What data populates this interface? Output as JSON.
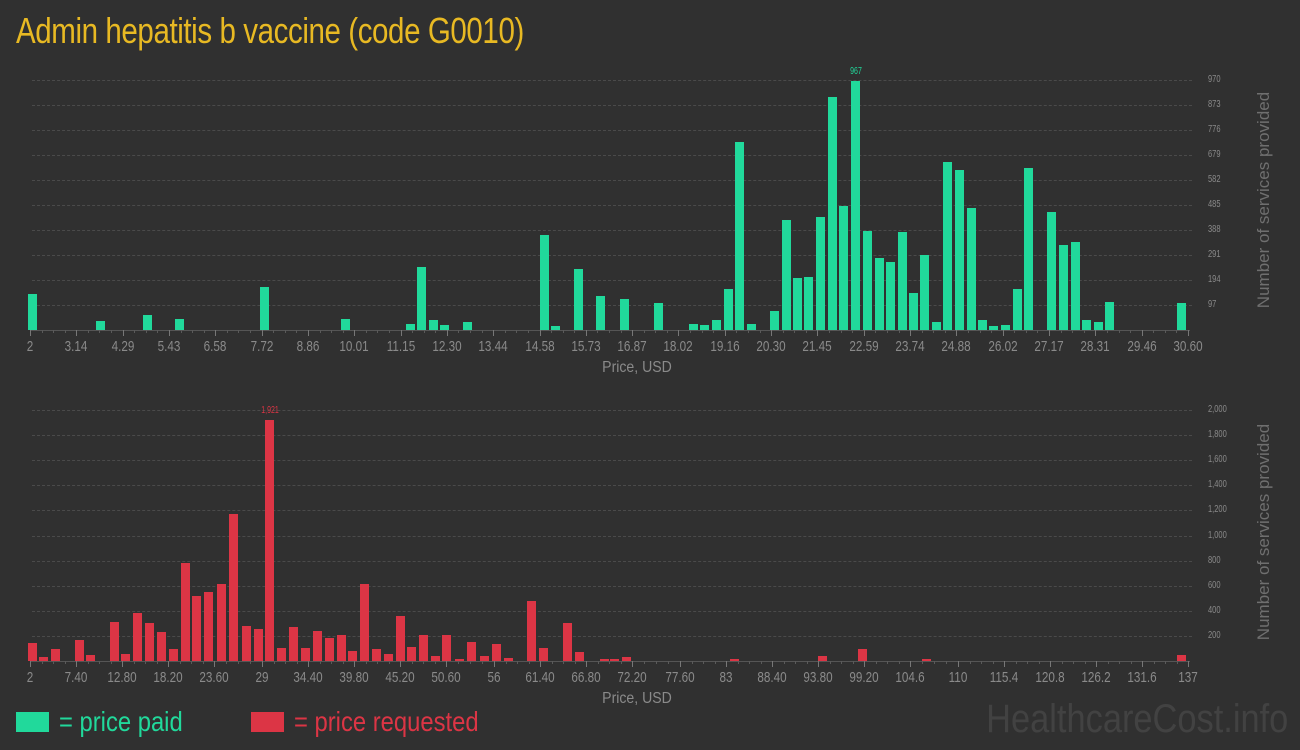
{
  "title": "Admin hepatitis b vaccine (code G0010)",
  "colors": {
    "title": "#e8b923",
    "paid": "#21d99b",
    "requested": "#dc3545",
    "background": "#303030"
  },
  "legend": {
    "paid_label": "= price paid",
    "requested_label": "= price requested"
  },
  "watermark": "HealthcareCost.info",
  "chart_data": [
    {
      "type": "bar",
      "name": "price-paid-histogram",
      "title": "",
      "xlabel": "Price, USD",
      "ylabel": "Number of services provided",
      "ylim": [
        0,
        970
      ],
      "yticks": [
        "97",
        "194",
        "291",
        "388",
        "485",
        "582",
        "679",
        "776",
        "873",
        "970"
      ],
      "xticks": [
        "2",
        "3.14",
        "4.29",
        "5.43",
        "6.58",
        "7.72",
        "8.86",
        "10.01",
        "11.15",
        "12.30",
        "13.44",
        "14.58",
        "15.73",
        "16.87",
        "18.02",
        "19.16",
        "20.30",
        "21.45",
        "22.59",
        "23.74",
        "24.88",
        "26.02",
        "27.17",
        "28.31",
        "29.46",
        "30.60"
      ],
      "peak_label": "967",
      "grid": true,
      "color": "#21d99b",
      "bars": [
        {
          "x": 2.05,
          "value": 140
        },
        {
          "x": 3.75,
          "value": 35
        },
        {
          "x": 4.9,
          "value": 60
        },
        {
          "x": 5.7,
          "value": 42
        },
        {
          "x": 7.8,
          "value": 165
        },
        {
          "x": 9.8,
          "value": 42
        },
        {
          "x": 11.4,
          "value": 25
        },
        {
          "x": 11.68,
          "value": 245
        },
        {
          "x": 11.98,
          "value": 38
        },
        {
          "x": 12.25,
          "value": 20
        },
        {
          "x": 12.8,
          "value": 30
        },
        {
          "x": 14.7,
          "value": 370
        },
        {
          "x": 14.98,
          "value": 15
        },
        {
          "x": 15.55,
          "value": 235
        },
        {
          "x": 16.1,
          "value": 130
        },
        {
          "x": 16.67,
          "value": 120
        },
        {
          "x": 17.53,
          "value": 105
        },
        {
          "x": 18.4,
          "value": 25
        },
        {
          "x": 18.67,
          "value": 20
        },
        {
          "x": 18.95,
          "value": 40
        },
        {
          "x": 19.25,
          "value": 160
        },
        {
          "x": 19.53,
          "value": 730
        },
        {
          "x": 19.81,
          "value": 22
        },
        {
          "x": 20.38,
          "value": 75
        },
        {
          "x": 20.67,
          "value": 425
        },
        {
          "x": 20.96,
          "value": 200
        },
        {
          "x": 21.23,
          "value": 205
        },
        {
          "x": 21.52,
          "value": 440
        },
        {
          "x": 21.82,
          "value": 905
        },
        {
          "x": 22.1,
          "value": 480
        },
        {
          "x": 22.39,
          "value": 967
        },
        {
          "x": 22.69,
          "value": 385
        },
        {
          "x": 22.97,
          "value": 278
        },
        {
          "x": 23.25,
          "value": 265
        },
        {
          "x": 23.54,
          "value": 380
        },
        {
          "x": 23.82,
          "value": 142
        },
        {
          "x": 24.1,
          "value": 292
        },
        {
          "x": 24.38,
          "value": 32
        },
        {
          "x": 24.67,
          "value": 652
        },
        {
          "x": 24.96,
          "value": 620
        },
        {
          "x": 25.24,
          "value": 472
        },
        {
          "x": 25.53,
          "value": 38
        },
        {
          "x": 25.8,
          "value": 15
        },
        {
          "x": 26.09,
          "value": 20
        },
        {
          "x": 26.38,
          "value": 160
        },
        {
          "x": 26.67,
          "value": 628
        },
        {
          "x": 27.23,
          "value": 458
        },
        {
          "x": 27.52,
          "value": 330
        },
        {
          "x": 27.81,
          "value": 343
        },
        {
          "x": 28.1,
          "value": 38
        },
        {
          "x": 28.38,
          "value": 32
        },
        {
          "x": 28.67,
          "value": 108
        },
        {
          "x": 30.45,
          "value": 105
        }
      ]
    },
    {
      "type": "bar",
      "name": "price-requested-histogram",
      "title": "",
      "xlabel": "Price, USD",
      "ylabel": "Number of services provided",
      "ylim": [
        0,
        2000
      ],
      "yticks": [
        "200",
        "400",
        "600",
        "800",
        "1,000",
        "1,200",
        "1,400",
        "1,600",
        "1,800",
        "2,000"
      ],
      "xticks": [
        "2",
        "7.40",
        "12.80",
        "18.20",
        "23.60",
        "29",
        "34.40",
        "39.80",
        "45.20",
        "50.60",
        "56",
        "61.40",
        "66.80",
        "72.20",
        "77.60",
        "83",
        "88.40",
        "93.80",
        "99.20",
        "104.6",
        "110",
        "115.4",
        "120.8",
        "126.2",
        "131.6",
        "137"
      ],
      "peak_label": "1,921",
      "grid": true,
      "color": "#dc3545",
      "bars": [
        {
          "x": 2.3,
          "value": 145
        },
        {
          "x": 3.6,
          "value": 35
        },
        {
          "x": 5.0,
          "value": 95
        },
        {
          "x": 7.8,
          "value": 165
        },
        {
          "x": 9.1,
          "value": 45
        },
        {
          "x": 11.9,
          "value": 310
        },
        {
          "x": 13.2,
          "value": 55
        },
        {
          "x": 14.6,
          "value": 380
        },
        {
          "x": 16.0,
          "value": 300
        },
        {
          "x": 17.4,
          "value": 230
        },
        {
          "x": 18.8,
          "value": 95
        },
        {
          "x": 20.2,
          "value": 780
        },
        {
          "x": 21.6,
          "value": 520
        },
        {
          "x": 23.0,
          "value": 550
        },
        {
          "x": 24.4,
          "value": 615
        },
        {
          "x": 25.8,
          "value": 1170
        },
        {
          "x": 27.2,
          "value": 280
        },
        {
          "x": 28.6,
          "value": 255
        },
        {
          "x": 29.9,
          "value": 1921
        },
        {
          "x": 31.3,
          "value": 105
        },
        {
          "x": 32.7,
          "value": 270
        },
        {
          "x": 34.1,
          "value": 105
        },
        {
          "x": 35.5,
          "value": 240
        },
        {
          "x": 36.9,
          "value": 180
        },
        {
          "x": 38.3,
          "value": 205
        },
        {
          "x": 39.6,
          "value": 80
        },
        {
          "x": 41.0,
          "value": 615
        },
        {
          "x": 42.4,
          "value": 95
        },
        {
          "x": 43.8,
          "value": 55
        },
        {
          "x": 45.2,
          "value": 360
        },
        {
          "x": 46.6,
          "value": 110
        },
        {
          "x": 48.0,
          "value": 210
        },
        {
          "x": 49.4,
          "value": 40
        },
        {
          "x": 50.7,
          "value": 210
        },
        {
          "x": 52.1,
          "value": 15
        },
        {
          "x": 53.5,
          "value": 150
        },
        {
          "x": 54.9,
          "value": 40
        },
        {
          "x": 56.3,
          "value": 135
        },
        {
          "x": 57.7,
          "value": 20
        },
        {
          "x": 60.4,
          "value": 480
        },
        {
          "x": 61.8,
          "value": 100
        },
        {
          "x": 64.6,
          "value": 305
        },
        {
          "x": 66.0,
          "value": 70
        },
        {
          "x": 69.0,
          "value": 12
        },
        {
          "x": 70.2,
          "value": 12
        },
        {
          "x": 71.6,
          "value": 28
        },
        {
          "x": 84.0,
          "value": 12
        },
        {
          "x": 94.3,
          "value": 38
        },
        {
          "x": 99.0,
          "value": 98
        },
        {
          "x": 106.5,
          "value": 12
        },
        {
          "x": 136.2,
          "value": 45
        }
      ]
    }
  ]
}
